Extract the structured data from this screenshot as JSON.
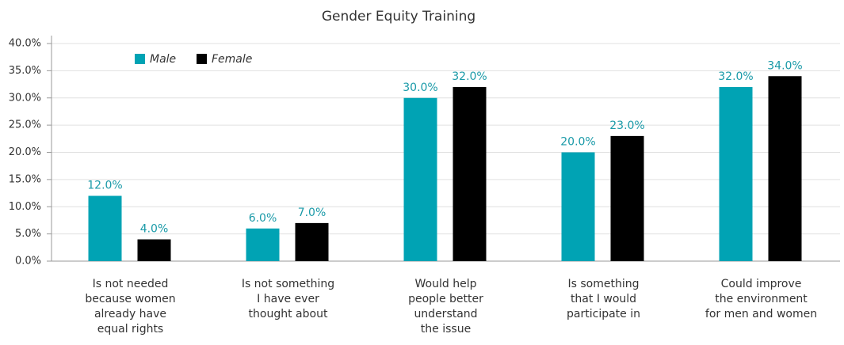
{
  "chart_data": {
    "type": "bar",
    "title": "Gender Equity Training",
    "categories": [
      "Is not needed\nbecause women\nalready have\nequal rights",
      "Is not something\nI have ever\nthought about",
      "Would help\npeople better\nunderstand\nthe issue",
      "Is something\nthat I would\nparticipate in",
      "Could improve\nthe environment\nfor men and women"
    ],
    "series": [
      {
        "name": "Male",
        "color": "#00a3b4",
        "values": [
          12,
          6,
          30,
          20,
          32
        ],
        "value_labels": [
          "12.0%",
          "6.0%",
          "30.0%",
          "20.0%",
          "32.0%"
        ]
      },
      {
        "name": "Female",
        "color": "#000000",
        "values": [
          4,
          7,
          32,
          23,
          34
        ],
        "value_labels": [
          "4.0%",
          "7.0%",
          "32.0%",
          "23.0%",
          "34.0%"
        ]
      }
    ],
    "ylim": [
      0,
      40
    ],
    "yticks": [
      {
        "value": 0,
        "label": "0.0%"
      },
      {
        "value": 5,
        "label": "5.0%"
      },
      {
        "value": 10,
        "label": "10.0%"
      },
      {
        "value": 15,
        "label": "15.0%"
      },
      {
        "value": 20,
        "label": "20.0%"
      },
      {
        "value": 25,
        "label": "25.0%"
      },
      {
        "value": 30,
        "label": "30.0%"
      },
      {
        "value": 35,
        "label": "35.0%"
      },
      {
        "value": 40,
        "label": "40.0%"
      }
    ],
    "grid": true,
    "legend": "top-left"
  }
}
